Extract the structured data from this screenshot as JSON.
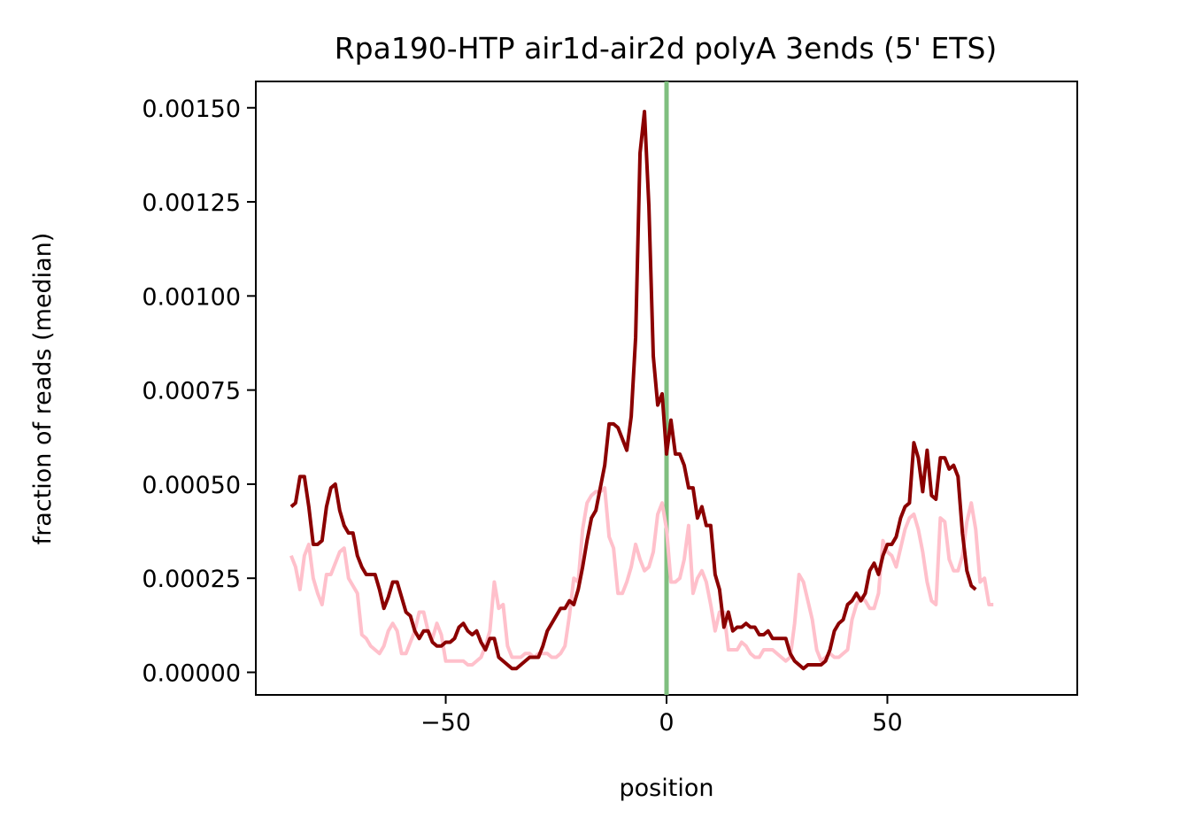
{
  "chart_data": {
    "type": "line",
    "title": "Rpa190-HTP air1d-air2d polyA 3ends (5' ETS)",
    "xlabel": "position",
    "ylabel": "fraction of reads (median)",
    "xlim": [
      -93,
      93
    ],
    "ylim": [
      -6e-05,
      0.00157
    ],
    "xticks": [
      -50,
      0,
      50
    ],
    "xtick_labels": [
      "−50",
      "0",
      "50"
    ],
    "yticks": [
      0,
      0.00025,
      0.0005,
      0.00075,
      0.001,
      0.00125,
      0.0015
    ],
    "ytick_labels": [
      "0.00000",
      "0.00025",
      "0.00050",
      "0.00075",
      "0.00100",
      "0.00125",
      "0.00150"
    ],
    "grid": false,
    "vline": {
      "x": 0,
      "color": "#7fbf7f"
    },
    "x_start": -85,
    "series": [
      {
        "color": "#8b0000",
        "values": [
          0.00044,
          0.00045,
          0.00052,
          0.00052,
          0.00044,
          0.00034,
          0.00034,
          0.00035,
          0.00044,
          0.00049,
          0.0005,
          0.00043,
          0.00039,
          0.00037,
          0.00037,
          0.00031,
          0.00028,
          0.00026,
          0.00026,
          0.00026,
          0.00022,
          0.00017,
          0.0002,
          0.00024,
          0.00024,
          0.0002,
          0.00016,
          0.00015,
          0.00011,
          9e-05,
          0.00011,
          0.00011,
          8e-05,
          7e-05,
          7e-05,
          8e-05,
          8e-05,
          9e-05,
          0.00012,
          0.00013,
          0.00011,
          0.0001,
          0.00011,
          8e-05,
          6e-05,
          9e-05,
          9e-05,
          4e-05,
          3e-05,
          2e-05,
          1e-05,
          1e-05,
          2e-05,
          3e-05,
          4e-05,
          4e-05,
          4e-05,
          7e-05,
          0.00011,
          0.00013,
          0.00015,
          0.00017,
          0.00017,
          0.00019,
          0.00018,
          0.00022,
          0.00028,
          0.00035,
          0.00041,
          0.00043,
          0.00049,
          0.00055,
          0.00066,
          0.00066,
          0.00065,
          0.00062,
          0.00059,
          0.00068,
          0.00089,
          0.00138,
          0.00149,
          0.00124,
          0.00084,
          0.00071,
          0.00074,
          0.00058,
          0.00067,
          0.00058,
          0.00058,
          0.00055,
          0.00049,
          0.00049,
          0.00041,
          0.00044,
          0.00039,
          0.00039,
          0.00026,
          0.00022,
          0.00012,
          0.00016,
          0.00011,
          0.00012,
          0.00012,
          0.00013,
          0.00012,
          0.00012,
          0.0001,
          0.0001,
          0.00011,
          9e-05,
          9e-05,
          9e-05,
          9e-05,
          5e-05,
          3e-05,
          2e-05,
          1e-05,
          2e-05,
          2e-05,
          2e-05,
          2e-05,
          3e-05,
          6e-05,
          0.00011,
          0.00013,
          0.00014,
          0.00018,
          0.00019,
          0.00021,
          0.00019,
          0.00021,
          0.00027,
          0.00029,
          0.00026,
          0.00031,
          0.00034,
          0.00034,
          0.00036,
          0.00041,
          0.00044,
          0.00045,
          0.00061,
          0.00057,
          0.00048,
          0.00059,
          0.00047,
          0.00046,
          0.00057,
          0.00057,
          0.00054,
          0.00055,
          0.00052,
          0.00037,
          0.00027,
          0.00023,
          0.00022
        ]
      },
      {
        "color": "#ffc0cb",
        "values": [
          0.00031,
          0.00028,
          0.00022,
          0.00031,
          0.00034,
          0.00025,
          0.00021,
          0.00018,
          0.00026,
          0.00026,
          0.00029,
          0.00032,
          0.00033,
          0.00025,
          0.00023,
          0.00021,
          0.0001,
          9e-05,
          7e-05,
          6e-05,
          5e-05,
          7e-05,
          0.00011,
          0.00013,
          0.00011,
          5e-05,
          5e-05,
          8e-05,
          0.00011,
          0.00016,
          0.00016,
          0.00011,
          9e-05,
          0.00013,
          0.0001,
          3e-05,
          3e-05,
          3e-05,
          3e-05,
          3e-05,
          2e-05,
          2e-05,
          3e-05,
          4e-05,
          7e-05,
          0.00011,
          0.00024,
          0.00017,
          0.00018,
          7e-05,
          4e-05,
          4e-05,
          4e-05,
          5e-05,
          5e-05,
          4e-05,
          5e-05,
          5e-05,
          5e-05,
          4e-05,
          4e-05,
          5e-05,
          7e-05,
          0.00015,
          0.00025,
          0.00024,
          0.00038,
          0.00045,
          0.00047,
          0.00048,
          0.00048,
          0.00049,
          0.00036,
          0.00033,
          0.00021,
          0.00021,
          0.00024,
          0.00028,
          0.00034,
          0.0003,
          0.00027,
          0.00028,
          0.00032,
          0.00042,
          0.00045,
          0.00038,
          0.00024,
          0.00024,
          0.00025,
          0.0003,
          0.00039,
          0.00021,
          0.00025,
          0.00027,
          0.00024,
          0.00018,
          0.00011,
          0.00016,
          0.00016,
          6e-05,
          6e-05,
          6e-05,
          8e-05,
          7e-05,
          5e-05,
          4e-05,
          4e-05,
          6e-05,
          6e-05,
          6e-05,
          5e-05,
          4e-05,
          3e-05,
          4e-05,
          0.00013,
          0.00026,
          0.00024,
          0.00019,
          0.00014,
          6e-05,
          3e-05,
          4e-05,
          5e-05,
          4e-05,
          4e-05,
          5e-05,
          6e-05,
          0.00014,
          0.00018,
          0.0002,
          0.00019,
          0.00017,
          0.00017,
          0.00021,
          0.00035,
          0.00032,
          0.00031,
          0.00028,
          0.00033,
          0.00038,
          0.00041,
          0.00042,
          0.00038,
          0.00032,
          0.00024,
          0.00019,
          0.00018,
          0.00041,
          0.0004,
          0.0003,
          0.00027,
          0.00027,
          0.00031,
          0.0004,
          0.00045,
          0.00038,
          0.00024,
          0.00025,
          0.00018,
          0.00018
        ]
      }
    ]
  }
}
